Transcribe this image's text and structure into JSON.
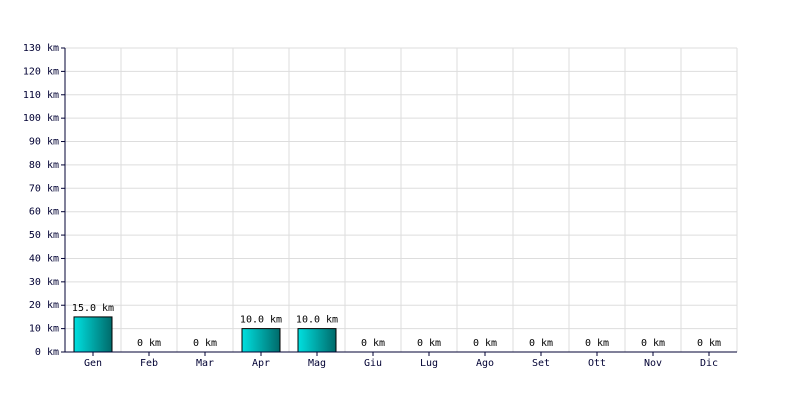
{
  "chart_data": {
    "type": "bar",
    "categories": [
      "Gen",
      "Feb",
      "Mar",
      "Apr",
      "Mag",
      "Giu",
      "Lug",
      "Ago",
      "Set",
      "Ott",
      "Nov",
      "Dic"
    ],
    "values": [
      15,
      0,
      0,
      10,
      10,
      0,
      0,
      0,
      0,
      0,
      0,
      0
    ],
    "value_labels": [
      "15.0 km",
      "0 km",
      "0 km",
      "10.0 km",
      "10.0 km",
      "0 km",
      "0 km",
      "0 km",
      "0 km",
      "0 km",
      "0 km",
      "0 km"
    ],
    "color": "#00e0e0",
    "ylim": [
      0,
      130
    ],
    "yticks": [
      {
        "value": 0,
        "label": "0 km"
      },
      {
        "value": 10,
        "label": "10 km"
      },
      {
        "value": 20,
        "label": "20 km"
      },
      {
        "value": 30,
        "label": "30 km"
      },
      {
        "value": 40,
        "label": "40 km"
      },
      {
        "value": 50,
        "label": "50 km"
      },
      {
        "value": 60,
        "label": "60 km"
      },
      {
        "value": 70,
        "label": "70 km"
      },
      {
        "value": 80,
        "label": "80 km"
      },
      {
        "value": 90,
        "label": "90 km"
      },
      {
        "value": 100,
        "label": "100 km"
      },
      {
        "value": 110,
        "label": "110 km"
      },
      {
        "value": 120,
        "label": "120 km"
      },
      {
        "value": 130,
        "label": "130 km"
      }
    ],
    "grid": true
  }
}
